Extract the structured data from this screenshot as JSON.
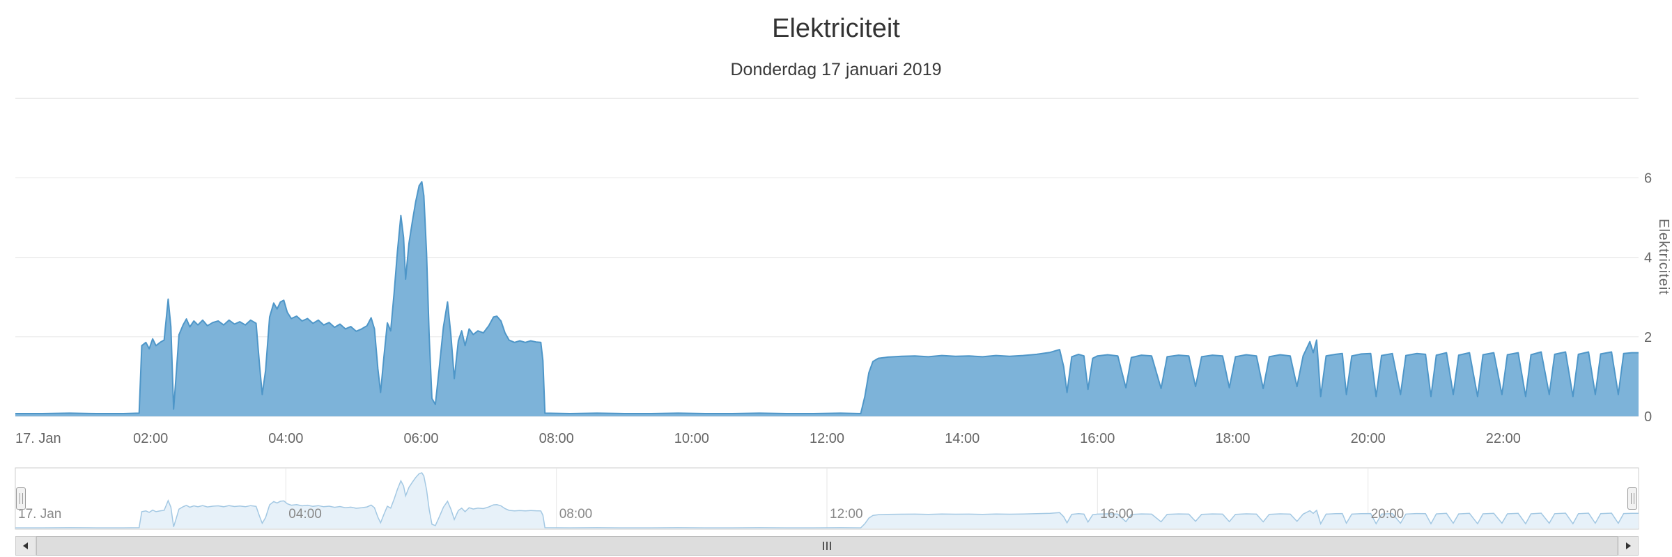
{
  "title": "Elektriciteit",
  "subtitle": "Donderdag 17 januari 2019",
  "colors": {
    "series_stroke": "#4e96c8",
    "series_fill": "#7db3d9",
    "navigator_stroke": "#a3c8e3",
    "navigator_fill": "#e7f1f9",
    "gridline": "#e6e6e6",
    "axis_label": "#666666",
    "navigator_label": "#888888"
  },
  "chart_data": {
    "type": "area",
    "title": "Elektriciteit",
    "subtitle": "Donderdag 17 januari 2019",
    "xlabel": "",
    "ylabel": "Elektriciteit",
    "ylim": [
      0,
      8
    ],
    "yticks": [
      0,
      2,
      4,
      6
    ],
    "xlim_hours": [
      0,
      24
    ],
    "grid": true,
    "legend": false,
    "xticks": [
      {
        "t": 0,
        "label": "17. Jan"
      },
      {
        "t": 2,
        "label": "02:00"
      },
      {
        "t": 4,
        "label": "04:00"
      },
      {
        "t": 6,
        "label": "06:00"
      },
      {
        "t": 8,
        "label": "08:00"
      },
      {
        "t": 10,
        "label": "10:00"
      },
      {
        "t": 12,
        "label": "12:00"
      },
      {
        "t": 14,
        "label": "14:00"
      },
      {
        "t": 16,
        "label": "16:00"
      },
      {
        "t": 18,
        "label": "18:00"
      },
      {
        "t": 20,
        "label": "20:00"
      },
      {
        "t": 22,
        "label": "22:00"
      }
    ],
    "navigator_ticks": [
      {
        "t": 0,
        "label": "17. Jan"
      },
      {
        "t": 4,
        "label": "04:00"
      },
      {
        "t": 8,
        "label": "08:00"
      },
      {
        "t": 12,
        "label": "12:00"
      },
      {
        "t": 16,
        "label": "16:00"
      },
      {
        "t": 20,
        "label": "20:00"
      }
    ],
    "series": [
      {
        "name": "Elektriciteit",
        "points": [
          [
            0,
            0.07
          ],
          [
            0.4,
            0.07
          ],
          [
            0.8,
            0.08
          ],
          [
            1.2,
            0.07
          ],
          [
            1.6,
            0.07
          ],
          [
            1.83,
            0.08
          ],
          [
            1.87,
            1.78
          ],
          [
            1.93,
            1.86
          ],
          [
            1.98,
            1.7
          ],
          [
            2.03,
            1.95
          ],
          [
            2.08,
            1.78
          ],
          [
            2.14,
            1.86
          ],
          [
            2.2,
            1.92
          ],
          [
            2.26,
            2.95
          ],
          [
            2.3,
            2.25
          ],
          [
            2.34,
            0.18
          ],
          [
            2.38,
            1.1
          ],
          [
            2.42,
            2.05
          ],
          [
            2.48,
            2.3
          ],
          [
            2.53,
            2.45
          ],
          [
            2.58,
            2.25
          ],
          [
            2.64,
            2.4
          ],
          [
            2.7,
            2.3
          ],
          [
            2.77,
            2.42
          ],
          [
            2.84,
            2.28
          ],
          [
            2.92,
            2.36
          ],
          [
            3.0,
            2.4
          ],
          [
            3.08,
            2.3
          ],
          [
            3.16,
            2.42
          ],
          [
            3.24,
            2.32
          ],
          [
            3.32,
            2.38
          ],
          [
            3.4,
            2.3
          ],
          [
            3.48,
            2.42
          ],
          [
            3.56,
            2.34
          ],
          [
            3.61,
            1.3
          ],
          [
            3.65,
            0.55
          ],
          [
            3.7,
            1.15
          ],
          [
            3.76,
            2.5
          ],
          [
            3.82,
            2.85
          ],
          [
            3.87,
            2.7
          ],
          [
            3.92,
            2.88
          ],
          [
            3.97,
            2.92
          ],
          [
            4.02,
            2.62
          ],
          [
            4.08,
            2.46
          ],
          [
            4.16,
            2.52
          ],
          [
            4.24,
            2.4
          ],
          [
            4.32,
            2.46
          ],
          [
            4.4,
            2.34
          ],
          [
            4.48,
            2.42
          ],
          [
            4.56,
            2.3
          ],
          [
            4.64,
            2.36
          ],
          [
            4.72,
            2.24
          ],
          [
            4.8,
            2.32
          ],
          [
            4.88,
            2.2
          ],
          [
            4.96,
            2.26
          ],
          [
            5.04,
            2.14
          ],
          [
            5.12,
            2.2
          ],
          [
            5.2,
            2.28
          ],
          [
            5.26,
            2.48
          ],
          [
            5.31,
            2.2
          ],
          [
            5.36,
            1.2
          ],
          [
            5.4,
            0.6
          ],
          [
            5.45,
            1.5
          ],
          [
            5.5,
            2.35
          ],
          [
            5.55,
            2.15
          ],
          [
            5.6,
            3.1
          ],
          [
            5.65,
            4.15
          ],
          [
            5.7,
            5.05
          ],
          [
            5.74,
            4.5
          ],
          [
            5.77,
            3.45
          ],
          [
            5.82,
            4.35
          ],
          [
            5.87,
            4.9
          ],
          [
            5.92,
            5.4
          ],
          [
            5.97,
            5.8
          ],
          [
            6.01,
            5.9
          ],
          [
            6.04,
            5.55
          ],
          [
            6.08,
            4.1
          ],
          [
            6.12,
            2.0
          ],
          [
            6.16,
            0.45
          ],
          [
            6.21,
            0.3
          ],
          [
            6.27,
            1.25
          ],
          [
            6.33,
            2.25
          ],
          [
            6.39,
            2.88
          ],
          [
            6.44,
            2.05
          ],
          [
            6.49,
            0.95
          ],
          [
            6.55,
            1.9
          ],
          [
            6.6,
            2.15
          ],
          [
            6.65,
            1.78
          ],
          [
            6.71,
            2.2
          ],
          [
            6.77,
            2.06
          ],
          [
            6.84,
            2.15
          ],
          [
            6.92,
            2.1
          ],
          [
            7.0,
            2.28
          ],
          [
            7.07,
            2.5
          ],
          [
            7.12,
            2.52
          ],
          [
            7.18,
            2.4
          ],
          [
            7.24,
            2.1
          ],
          [
            7.3,
            1.92
          ],
          [
            7.38,
            1.86
          ],
          [
            7.46,
            1.9
          ],
          [
            7.54,
            1.86
          ],
          [
            7.62,
            1.9
          ],
          [
            7.7,
            1.87
          ],
          [
            7.77,
            1.86
          ],
          [
            7.8,
            1.4
          ],
          [
            7.83,
            0.08
          ],
          [
            8.2,
            0.07
          ],
          [
            8.6,
            0.08
          ],
          [
            9.0,
            0.07
          ],
          [
            9.4,
            0.07
          ],
          [
            9.8,
            0.08
          ],
          [
            10.2,
            0.07
          ],
          [
            10.6,
            0.07
          ],
          [
            11.0,
            0.08
          ],
          [
            11.4,
            0.07
          ],
          [
            11.8,
            0.07
          ],
          [
            12.2,
            0.08
          ],
          [
            12.5,
            0.07
          ],
          [
            12.56,
            0.5
          ],
          [
            12.62,
            1.1
          ],
          [
            12.68,
            1.38
          ],
          [
            12.76,
            1.46
          ],
          [
            12.9,
            1.49
          ],
          [
            13.1,
            1.51
          ],
          [
            13.3,
            1.52
          ],
          [
            13.5,
            1.5
          ],
          [
            13.7,
            1.53
          ],
          [
            13.9,
            1.51
          ],
          [
            14.1,
            1.52
          ],
          [
            14.3,
            1.5
          ],
          [
            14.5,
            1.53
          ],
          [
            14.7,
            1.51
          ],
          [
            14.9,
            1.53
          ],
          [
            15.1,
            1.56
          ],
          [
            15.3,
            1.61
          ],
          [
            15.44,
            1.68
          ],
          [
            15.5,
            1.25
          ],
          [
            15.55,
            0.6
          ],
          [
            15.62,
            1.5
          ],
          [
            15.72,
            1.56
          ],
          [
            15.8,
            1.52
          ],
          [
            15.86,
            0.68
          ],
          [
            15.93,
            1.46
          ],
          [
            16.0,
            1.52
          ],
          [
            16.15,
            1.55
          ],
          [
            16.3,
            1.52
          ],
          [
            16.42,
            0.72
          ],
          [
            16.5,
            1.48
          ],
          [
            16.65,
            1.54
          ],
          [
            16.8,
            1.52
          ],
          [
            16.94,
            0.7
          ],
          [
            17.03,
            1.5
          ],
          [
            17.2,
            1.54
          ],
          [
            17.35,
            1.52
          ],
          [
            17.45,
            0.75
          ],
          [
            17.54,
            1.5
          ],
          [
            17.7,
            1.54
          ],
          [
            17.85,
            1.52
          ],
          [
            17.95,
            0.72
          ],
          [
            18.04,
            1.5
          ],
          [
            18.2,
            1.55
          ],
          [
            18.35,
            1.52
          ],
          [
            18.45,
            0.7
          ],
          [
            18.54,
            1.5
          ],
          [
            18.7,
            1.55
          ],
          [
            18.85,
            1.52
          ],
          [
            18.95,
            0.75
          ],
          [
            19.04,
            1.52
          ],
          [
            19.14,
            1.88
          ],
          [
            19.19,
            1.6
          ],
          [
            19.24,
            1.92
          ],
          [
            19.3,
            0.5
          ],
          [
            19.38,
            1.52
          ],
          [
            19.52,
            1.56
          ],
          [
            19.62,
            1.58
          ],
          [
            19.68,
            0.55
          ],
          [
            19.76,
            1.52
          ],
          [
            19.9,
            1.57
          ],
          [
            20.04,
            1.58
          ],
          [
            20.12,
            0.5
          ],
          [
            20.2,
            1.53
          ],
          [
            20.36,
            1.58
          ],
          [
            20.48,
            0.55
          ],
          [
            20.56,
            1.53
          ],
          [
            20.72,
            1.58
          ],
          [
            20.85,
            1.56
          ],
          [
            20.93,
            0.5
          ],
          [
            21.01,
            1.54
          ],
          [
            21.16,
            1.6
          ],
          [
            21.26,
            0.55
          ],
          [
            21.34,
            1.54
          ],
          [
            21.5,
            1.6
          ],
          [
            21.62,
            0.5
          ],
          [
            21.7,
            1.55
          ],
          [
            21.86,
            1.6
          ],
          [
            21.98,
            0.55
          ],
          [
            22.06,
            1.55
          ],
          [
            22.22,
            1.6
          ],
          [
            22.33,
            0.5
          ],
          [
            22.41,
            1.55
          ],
          [
            22.56,
            1.62
          ],
          [
            22.68,
            0.55
          ],
          [
            22.76,
            1.56
          ],
          [
            22.92,
            1.62
          ],
          [
            23.03,
            0.5
          ],
          [
            23.11,
            1.56
          ],
          [
            23.26,
            1.62
          ],
          [
            23.36,
            0.55
          ],
          [
            23.44,
            1.57
          ],
          [
            23.6,
            1.62
          ],
          [
            23.7,
            0.55
          ],
          [
            23.78,
            1.58
          ],
          [
            23.9,
            1.6
          ],
          [
            24.0,
            1.6
          ]
        ]
      }
    ]
  }
}
